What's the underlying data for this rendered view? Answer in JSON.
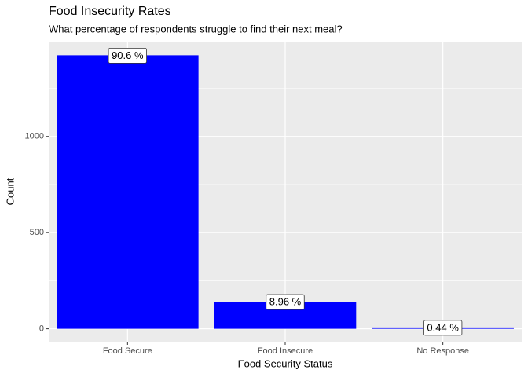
{
  "chart_data": {
    "type": "bar",
    "title": "Food Insecurity Rates",
    "subtitle": "What percentage of respondents struggle to find their next meal?",
    "x_label": "Food Security Status",
    "y_label": "Count",
    "categories": [
      "Food Secure",
      "Food Insecure",
      "No Response"
    ],
    "values": [
      1422,
      141,
      7
    ],
    "percentages": [
      90.6,
      8.96,
      0.44
    ],
    "percentage_labels": [
      "90.6 %",
      "8.96 %",
      "0.44 %"
    ],
    "color": "#0000ff",
    "ylim": [
      -71,
      1493
    ],
    "yticks": [
      0,
      500,
      1000
    ],
    "minor_grid": [
      250,
      750,
      1250
    ],
    "grid": true
  }
}
